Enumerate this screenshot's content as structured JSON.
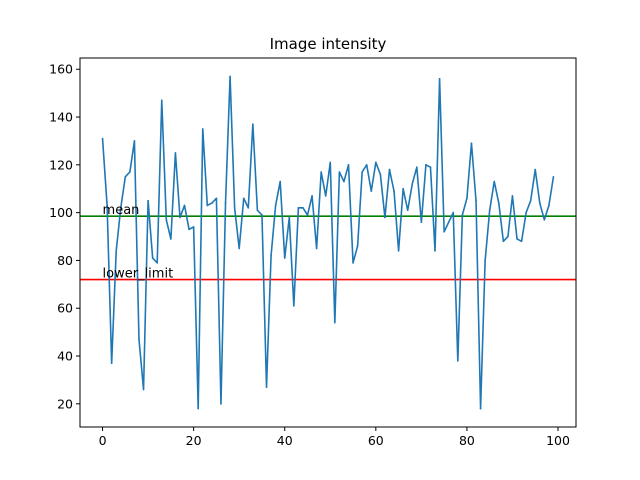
{
  "chart_data": {
    "type": "line",
    "title": "Image intensity",
    "xlabel": "",
    "ylabel": "",
    "xlim": [
      -4.95,
      103.95
    ],
    "ylim": [
      10.3,
      164.7
    ],
    "xticks": [
      0,
      20,
      40,
      60,
      80,
      100
    ],
    "yticks": [
      20,
      40,
      60,
      80,
      100,
      120,
      140,
      160
    ],
    "grid": false,
    "series": [
      {
        "color": "#1f77b4",
        "x": [
          0,
          1,
          2,
          3,
          4,
          5,
          6,
          7,
          8,
          9,
          10,
          11,
          12,
          13,
          14,
          15,
          16,
          17,
          18,
          19,
          20,
          21,
          22,
          23,
          24,
          25,
          26,
          27,
          28,
          29,
          30,
          31,
          32,
          33,
          34,
          35,
          36,
          37,
          38,
          39,
          40,
          41,
          42,
          43,
          44,
          45,
          46,
          47,
          48,
          49,
          50,
          51,
          52,
          53,
          54,
          55,
          56,
          57,
          58,
          59,
          60,
          61,
          62,
          63,
          64,
          65,
          66,
          67,
          68,
          69,
          70,
          71,
          72,
          73,
          74,
          75,
          76,
          77,
          78,
          79,
          80,
          81,
          82,
          83,
          84,
          85,
          86,
          87,
          88,
          89,
          90,
          91,
          92,
          93,
          94,
          95,
          96,
          97,
          98,
          99
        ],
        "values": [
          131,
          103,
          37,
          84,
          102,
          115,
          117,
          130,
          47,
          26,
          105,
          81,
          79,
          147,
          97,
          89,
          125,
          98,
          103,
          93,
          94,
          18,
          135,
          103,
          104,
          106,
          20,
          104,
          157,
          102,
          85,
          106,
          102,
          137,
          101,
          99,
          27,
          82,
          103,
          113,
          81,
          98,
          61,
          102,
          102,
          99,
          107,
          85,
          117,
          107,
          121,
          54,
          117,
          113,
          120,
          79,
          86,
          117,
          120,
          109,
          121,
          116,
          98,
          118,
          109,
          84,
          110,
          101,
          112,
          119,
          96,
          120,
          119,
          84,
          156,
          92,
          96,
          100,
          38,
          99,
          106,
          129,
          105,
          18,
          80,
          101,
          113,
          104,
          88,
          90,
          107,
          89,
          88,
          100,
          105,
          118,
          104,
          97,
          103,
          115
        ]
      }
    ],
    "hlines": [
      {
        "y": 98.5,
        "color": "#008000",
        "label": "mean"
      },
      {
        "y": 72,
        "color": "#ff0000",
        "label": "lower_limit"
      }
    ]
  }
}
